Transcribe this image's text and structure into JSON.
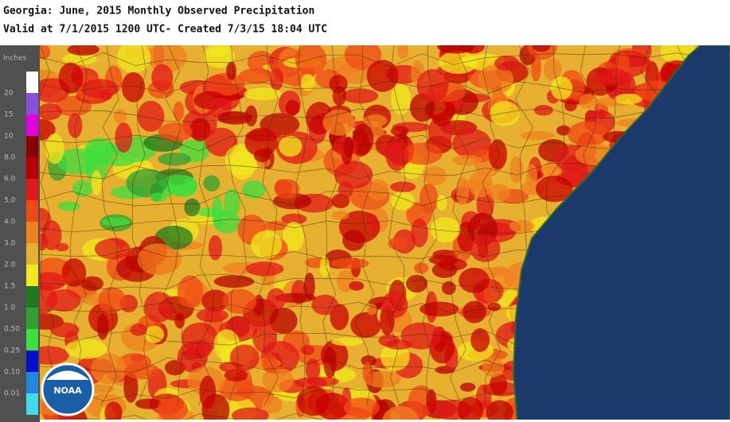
{
  "header": {
    "title": "Georgia: June, 2015 Monthly Observed Precipitation",
    "subtitle": "Valid at 7/1/2015 1200 UTC- Created 7/3/15 18:04 UTC"
  },
  "legend": {
    "unit": "Inches",
    "colors": [
      "#ffffff",
      "#8a4fd8",
      "#e000e0",
      "#8b0000",
      "#b80000",
      "#e01818",
      "#f04a14",
      "#f08020",
      "#e8b030",
      "#f2e81e",
      "#1f7a1f",
      "#30a030",
      "#3ede3e",
      "#0010c8",
      "#2088e0",
      "#40dce8"
    ],
    "labels": [
      "20",
      "15",
      "10",
      "8.0",
      "6.0",
      "5.0",
      "4.0",
      "3.0",
      "2.0",
      "1.5",
      "1.0",
      "0.50",
      "0.25",
      "0.10",
      "0.01"
    ]
  },
  "logo": {
    "text": "NOAA"
  }
}
